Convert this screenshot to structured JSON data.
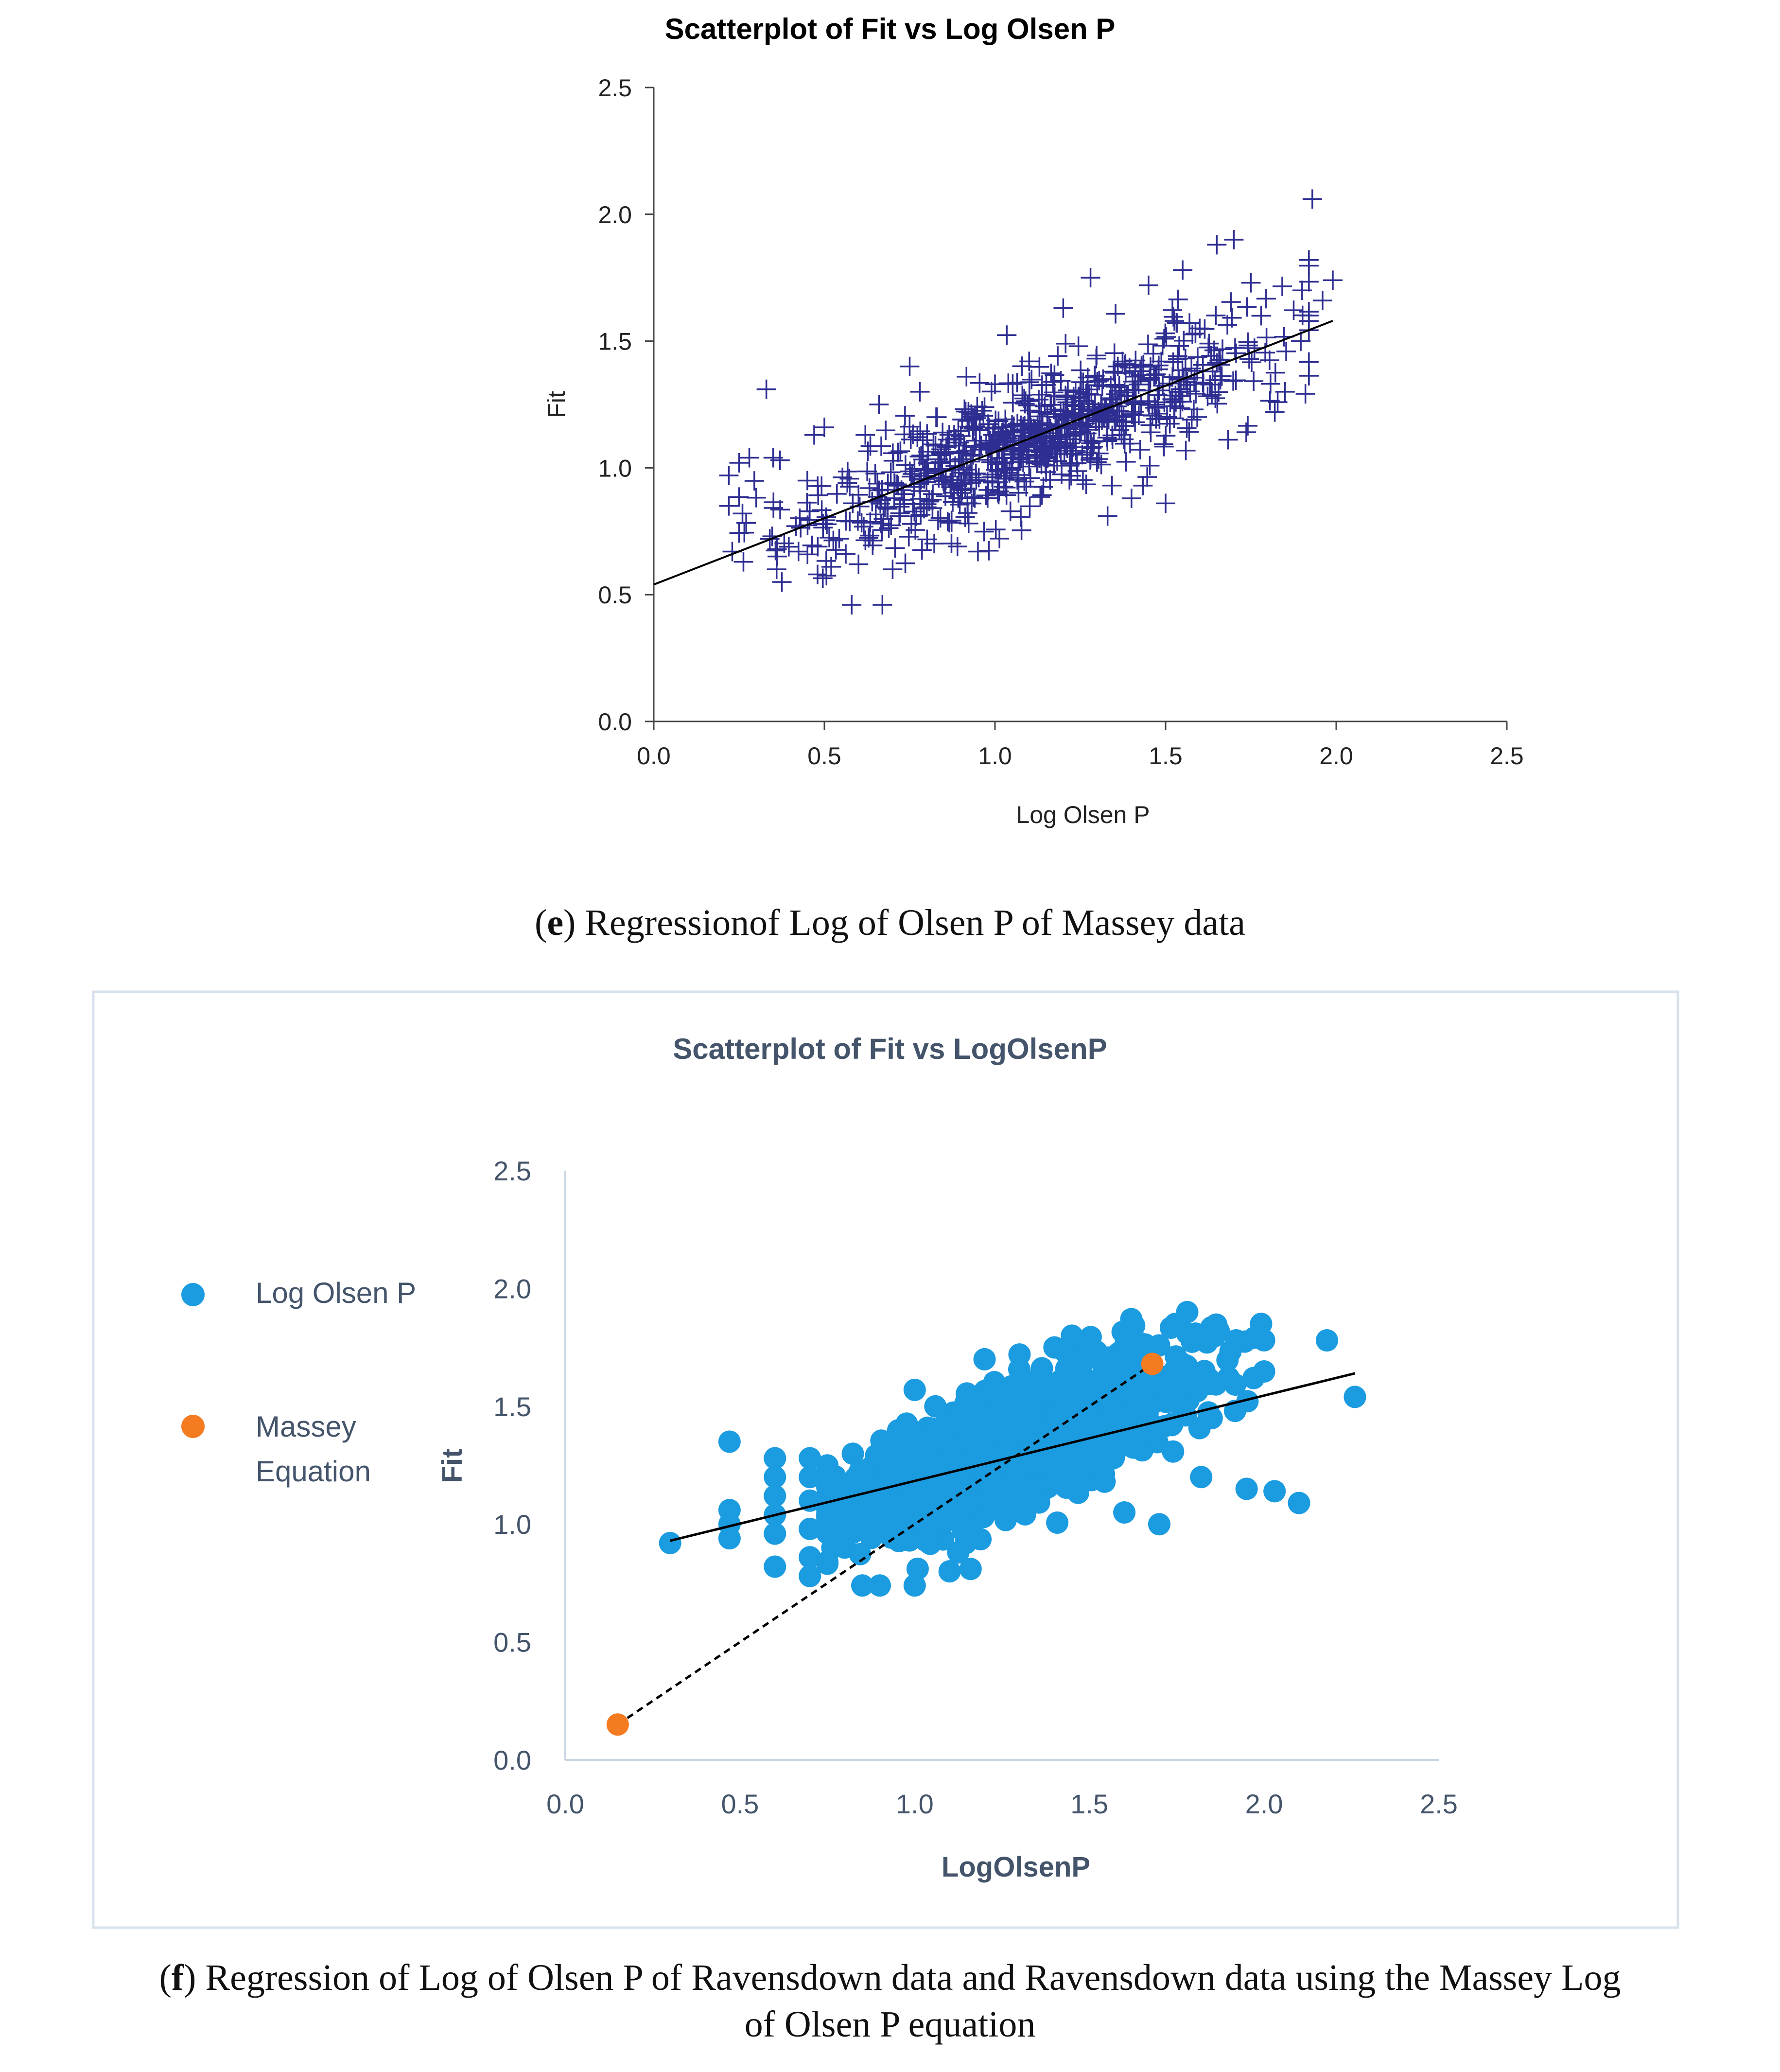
{
  "chart_data": [
    {
      "type": "scatter",
      "title": "Scatterplot of Fit vs Log Olsen P",
      "xlabel": "Log Olsen P",
      "ylabel": "Fit",
      "xlim": [
        0,
        2.5
      ],
      "ylim": [
        0,
        2.5
      ],
      "x_ticks": [
        "0.0",
        "0.5",
        "1.0",
        "1.5",
        "2.0",
        "2.5"
      ],
      "y_ticks": [
        "0.0",
        "0.5",
        "1.0",
        "1.5",
        "2.0",
        "2.5"
      ],
      "marker": "plus",
      "marker_color": "#2e2e92",
      "point_count": 900,
      "regression_line": {
        "x": [
          0.0,
          1.99
        ],
        "y": [
          0.54,
          1.58
        ]
      },
      "points": [
        [
          0.22,
          0.97
        ],
        [
          0.22,
          0.85
        ],
        [
          0.23,
          0.67
        ],
        [
          0.25,
          1.02
        ],
        [
          0.26,
          0.82
        ],
        [
          0.28,
          1.04
        ],
        [
          0.33,
          1.31
        ],
        [
          0.34,
          0.72
        ],
        [
          0.35,
          1.04
        ],
        [
          0.36,
          0.6
        ],
        [
          0.37,
          1.03
        ],
        [
          0.45,
          0.95
        ],
        [
          0.47,
          1.13
        ],
        [
          0.48,
          0.58
        ],
        [
          0.5,
          1.16
        ],
        [
          0.52,
          0.61
        ],
        [
          0.58,
          0.46
        ],
        [
          0.6,
          0.62
        ],
        [
          0.62,
          1.13
        ],
        [
          0.66,
          1.25
        ],
        [
          0.67,
          0.46
        ],
        [
          0.7,
          0.6
        ],
        [
          0.75,
          1.4
        ],
        [
          0.78,
          1.3
        ],
        [
          0.83,
          1.2
        ],
        [
          0.89,
          0.69
        ],
        [
          0.95,
          0.67
        ],
        [
          1.0,
          1.33
        ],
        [
          1.1,
          1.42
        ],
        [
          1.2,
          1.63
        ],
        [
          1.25,
          1.3
        ],
        [
          1.28,
          1.75
        ],
        [
          1.33,
          0.81
        ],
        [
          1.36,
          1.4
        ],
        [
          1.4,
          0.88
        ],
        [
          1.45,
          1.72
        ],
        [
          1.5,
          0.86
        ],
        [
          1.55,
          1.78
        ],
        [
          1.6,
          1.55
        ],
        [
          1.65,
          1.88
        ],
        [
          1.7,
          1.9
        ],
        [
          1.75,
          1.73
        ],
        [
          1.78,
          1.6
        ],
        [
          1.82,
          1.22
        ],
        [
          1.85,
          1.3
        ],
        [
          1.9,
          1.7
        ],
        [
          1.92,
          1.82
        ],
        [
          1.93,
          2.06
        ],
        [
          1.96,
          1.66
        ],
        [
          1.99,
          1.74
        ]
      ]
    },
    {
      "type": "scatter",
      "title": "Scatterplot of Fit vs LogOlsenP",
      "xlabel": "LogOlsenP",
      "ylabel": "Fit",
      "xlim": [
        0,
        2.5
      ],
      "ylim": [
        0,
        2.5
      ],
      "x_ticks": [
        "0.0",
        "0.5",
        "1.0",
        "1.5",
        "2.0",
        "2.5"
      ],
      "y_ticks": [
        "0.0",
        "0.5",
        "1.0",
        "1.5",
        "2.0",
        "2.5"
      ],
      "legend_position": "left",
      "series": [
        {
          "name": "Log Olsen P",
          "color": "#1b9be0",
          "marker": "circle",
          "point_count": 1400,
          "points": [
            [
              0.3,
              0.92
            ],
            [
              0.47,
              1.35
            ],
            [
              0.47,
              1.06
            ],
            [
              0.47,
              1.0
            ],
            [
              0.47,
              0.94
            ],
            [
              0.6,
              1.28
            ],
            [
              0.6,
              1.2
            ],
            [
              0.6,
              1.12
            ],
            [
              0.6,
              1.04
            ],
            [
              0.6,
              0.96
            ],
            [
              0.6,
              0.82
            ],
            [
              0.7,
              1.28
            ],
            [
              0.7,
              1.2
            ],
            [
              0.7,
              1.1
            ],
            [
              0.7,
              0.98
            ],
            [
              0.7,
              0.86
            ],
            [
              0.7,
              0.78
            ],
            [
              0.85,
              0.74
            ],
            [
              0.9,
              0.74
            ],
            [
              1.0,
              0.74
            ],
            [
              1.0,
              1.57
            ],
            [
              1.1,
              0.8
            ],
            [
              1.16,
              0.81
            ],
            [
              1.2,
              1.7
            ],
            [
              1.3,
              1.72
            ],
            [
              1.4,
              1.75
            ],
            [
              1.45,
              1.8
            ],
            [
              1.5,
              1.76
            ],
            [
              1.6,
              1.05
            ],
            [
              1.62,
              1.87
            ],
            [
              1.7,
              1.0
            ],
            [
              1.72,
              1.58
            ],
            [
              1.78,
              1.9
            ],
            [
              1.82,
              1.2
            ],
            [
              1.85,
              1.83
            ],
            [
              1.92,
              1.78
            ],
            [
              1.95,
              1.15
            ],
            [
              1.97,
              1.62
            ],
            [
              2.03,
              1.14
            ],
            [
              2.1,
              1.09
            ],
            [
              2.18,
              1.78
            ],
            [
              2.26,
              1.54
            ],
            [
              1.1,
              1.3
            ],
            [
              1.2,
              1.35
            ],
            [
              1.3,
              1.4
            ],
            [
              1.4,
              1.45
            ],
            [
              1.5,
              1.5
            ],
            [
              1.6,
              1.55
            ],
            [
              1.7,
              1.6
            ],
            [
              1.85,
              1.45
            ]
          ]
        },
        {
          "name": "Massey Equation",
          "color": "#f47b20",
          "marker": "circle",
          "points": [
            [
              0.15,
              0.15
            ],
            [
              1.68,
              1.68
            ]
          ]
        }
      ],
      "regression_line": {
        "x": [
          0.3,
          2.26
        ],
        "y": [
          0.93,
          1.64
        ]
      },
      "massey_line": {
        "x": [
          0.15,
          1.68
        ],
        "y": [
          0.15,
          1.68
        ],
        "style": "dashed"
      }
    }
  ],
  "captions": {
    "e_letter": "e",
    "e_text": "Regressionof Log of Olsen P of Massey data",
    "f_letter": "f",
    "f_text_line1": "Regression of Log of Olsen P of Ravensdown data and Ravensdown data using the Massey Log",
    "f_text_line2": "of Olsen P equation"
  }
}
